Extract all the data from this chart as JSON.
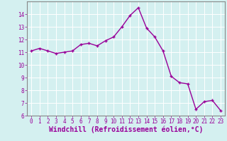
{
  "x": [
    0,
    1,
    2,
    3,
    4,
    5,
    6,
    7,
    8,
    9,
    10,
    11,
    12,
    13,
    14,
    15,
    16,
    17,
    18,
    19,
    20,
    21,
    22,
    23
  ],
  "y": [
    11.1,
    11.3,
    11.1,
    10.9,
    11.0,
    11.1,
    11.6,
    11.7,
    11.5,
    11.9,
    12.2,
    13.0,
    13.9,
    14.5,
    12.9,
    12.2,
    11.1,
    9.1,
    8.6,
    8.5,
    6.5,
    7.1,
    7.2,
    6.4
  ],
  "line_color": "#990099",
  "marker": "+",
  "marker_size": 3.5,
  "linewidth": 1.0,
  "xlabel": "Windchill (Refroidissement éolien,°C)",
  "xlabel_fontsize": 7,
  "ylim": [
    6,
    15
  ],
  "xlim": [
    -0.5,
    23.5
  ],
  "yticks": [
    6,
    7,
    8,
    9,
    10,
    11,
    12,
    13,
    14
  ],
  "xticks": [
    0,
    1,
    2,
    3,
    4,
    5,
    6,
    7,
    8,
    9,
    10,
    11,
    12,
    13,
    14,
    15,
    16,
    17,
    18,
    19,
    20,
    21,
    22,
    23
  ],
  "tick_fontsize": 5.5,
  "background_color": "#d4f0f0",
  "grid_color": "#ffffff",
  "grid_linewidth": 0.7,
  "line_color_spine": "#888888",
  "axis_label_color": "#990099",
  "tick_color": "#990099"
}
